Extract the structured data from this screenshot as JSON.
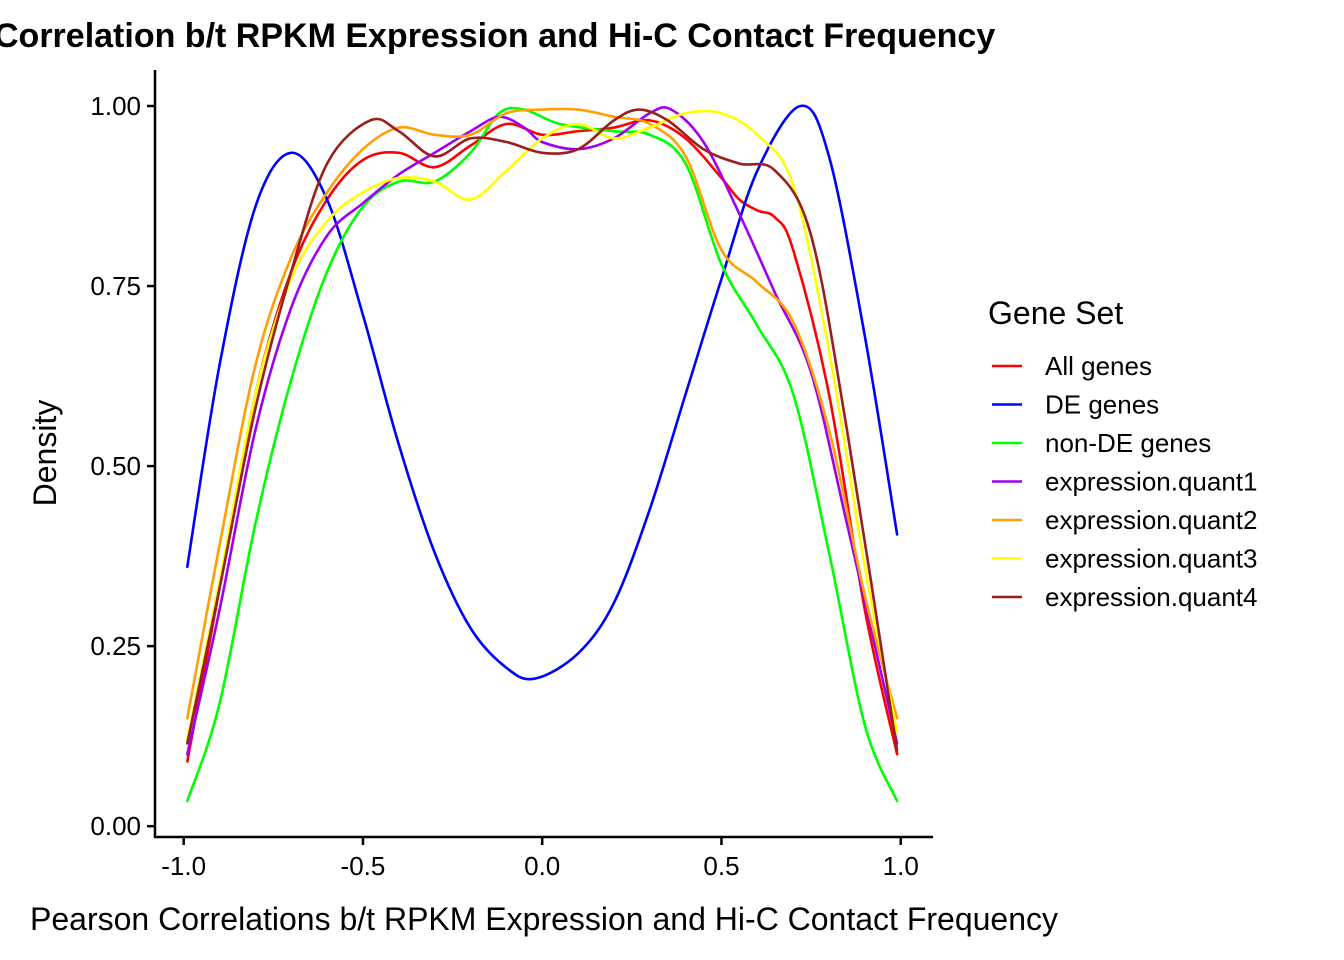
{
  "chart_data": {
    "type": "line",
    "title": "Correlation b/t RPKM Expression and Hi-C Contact Frequency",
    "xlabel": "Pearson Correlations b/t RPKM Expression and Hi-C Contact Frequency",
    "ylabel": "Density",
    "xlim": [
      -1.08,
      1.09
    ],
    "ylim": [
      -0.015,
      1.05
    ],
    "x_ticks": [
      -1.0,
      -0.5,
      0.0,
      0.5,
      1.0
    ],
    "x_tick_labels": [
      "-1.0",
      "-0.5",
      "0.0",
      "0.5",
      "1.0"
    ],
    "y_ticks": [
      0.0,
      0.25,
      0.5,
      0.75,
      1.0
    ],
    "y_tick_labels": [
      "0.00",
      "0.25",
      "0.50",
      "0.75",
      "1.00"
    ],
    "grid": false,
    "legend": {
      "title": "Gene Set",
      "placement": "right"
    },
    "series": [
      {
        "name": "All genes",
        "color": "#ff0000",
        "points": [
          [
            -0.99,
            0.09
          ],
          [
            -0.9,
            0.33
          ],
          [
            -0.8,
            0.6
          ],
          [
            -0.7,
            0.77
          ],
          [
            -0.6,
            0.87
          ],
          [
            -0.5,
            0.925
          ],
          [
            -0.4,
            0.935
          ],
          [
            -0.3,
            0.915
          ],
          [
            -0.2,
            0.945
          ],
          [
            -0.1,
            0.975
          ],
          [
            0.0,
            0.96
          ],
          [
            0.1,
            0.965
          ],
          [
            0.2,
            0.97
          ],
          [
            0.3,
            0.98
          ],
          [
            0.4,
            0.955
          ],
          [
            0.5,
            0.9
          ],
          [
            0.55,
            0.87
          ],
          [
            0.6,
            0.855
          ],
          [
            0.65,
            0.845
          ],
          [
            0.7,
            0.8
          ],
          [
            0.8,
            0.6
          ],
          [
            0.9,
            0.3
          ],
          [
            0.99,
            0.1
          ]
        ]
      },
      {
        "name": "DE genes",
        "color": "#0000ff",
        "points": [
          [
            -0.99,
            0.36
          ],
          [
            -0.9,
            0.64
          ],
          [
            -0.8,
            0.86
          ],
          [
            -0.7,
            0.935
          ],
          [
            -0.6,
            0.87
          ],
          [
            -0.5,
            0.71
          ],
          [
            -0.4,
            0.53
          ],
          [
            -0.3,
            0.38
          ],
          [
            -0.2,
            0.275
          ],
          [
            -0.1,
            0.22
          ],
          [
            -0.02,
            0.205
          ],
          [
            0.1,
            0.24
          ],
          [
            0.2,
            0.31
          ],
          [
            0.3,
            0.44
          ],
          [
            0.4,
            0.6
          ],
          [
            0.5,
            0.76
          ],
          [
            0.6,
            0.91
          ],
          [
            0.72,
            1.0
          ],
          [
            0.8,
            0.93
          ],
          [
            0.9,
            0.68
          ],
          [
            0.99,
            0.405
          ]
        ]
      },
      {
        "name": "non-DE genes",
        "color": "#00ff00",
        "points": [
          [
            -0.99,
            0.035
          ],
          [
            -0.9,
            0.17
          ],
          [
            -0.8,
            0.42
          ],
          [
            -0.7,
            0.62
          ],
          [
            -0.6,
            0.77
          ],
          [
            -0.5,
            0.86
          ],
          [
            -0.4,
            0.895
          ],
          [
            -0.3,
            0.895
          ],
          [
            -0.2,
            0.935
          ],
          [
            -0.12,
            0.99
          ],
          [
            -0.05,
            0.995
          ],
          [
            0.05,
            0.975
          ],
          [
            0.2,
            0.965
          ],
          [
            0.3,
            0.96
          ],
          [
            0.4,
            0.92
          ],
          [
            0.5,
            0.78
          ],
          [
            0.6,
            0.695
          ],
          [
            0.7,
            0.6
          ],
          [
            0.8,
            0.38
          ],
          [
            0.9,
            0.14
          ],
          [
            0.99,
            0.035
          ]
        ]
      },
      {
        "name": "expression.quant1",
        "color": "#a000f0",
        "points": [
          [
            -0.99,
            0.1
          ],
          [
            -0.9,
            0.3
          ],
          [
            -0.8,
            0.55
          ],
          [
            -0.7,
            0.72
          ],
          [
            -0.6,
            0.82
          ],
          [
            -0.5,
            0.865
          ],
          [
            -0.4,
            0.905
          ],
          [
            -0.3,
            0.935
          ],
          [
            -0.2,
            0.965
          ],
          [
            -0.12,
            0.985
          ],
          [
            -0.05,
            0.97
          ],
          [
            0.0,
            0.95
          ],
          [
            0.1,
            0.94
          ],
          [
            0.2,
            0.955
          ],
          [
            0.3,
            0.99
          ],
          [
            0.36,
            0.995
          ],
          [
            0.45,
            0.95
          ],
          [
            0.55,
            0.85
          ],
          [
            0.65,
            0.74
          ],
          [
            0.75,
            0.63
          ],
          [
            0.85,
            0.42
          ],
          [
            0.99,
            0.115
          ]
        ]
      },
      {
        "name": "expression.quant2",
        "color": "#ff9f00",
        "points": [
          [
            -0.99,
            0.15
          ],
          [
            -0.9,
            0.39
          ],
          [
            -0.8,
            0.64
          ],
          [
            -0.7,
            0.79
          ],
          [
            -0.6,
            0.88
          ],
          [
            -0.5,
            0.94
          ],
          [
            -0.4,
            0.97
          ],
          [
            -0.3,
            0.96
          ],
          [
            -0.2,
            0.96
          ],
          [
            -0.1,
            0.99
          ],
          [
            0.0,
            0.995
          ],
          [
            0.1,
            0.995
          ],
          [
            0.2,
            0.985
          ],
          [
            0.3,
            0.975
          ],
          [
            0.4,
            0.93
          ],
          [
            0.5,
            0.8
          ],
          [
            0.6,
            0.755
          ],
          [
            0.7,
            0.7
          ],
          [
            0.8,
            0.55
          ],
          [
            0.9,
            0.32
          ],
          [
            0.99,
            0.15
          ]
        ]
      },
      {
        "name": "expression.quant3",
        "color": "#ffff00",
        "points": [
          [
            -0.99,
            0.12
          ],
          [
            -0.9,
            0.34
          ],
          [
            -0.8,
            0.6
          ],
          [
            -0.7,
            0.76
          ],
          [
            -0.6,
            0.84
          ],
          [
            -0.5,
            0.88
          ],
          [
            -0.4,
            0.9
          ],
          [
            -0.3,
            0.895
          ],
          [
            -0.2,
            0.87
          ],
          [
            -0.1,
            0.91
          ],
          [
            0.0,
            0.955
          ],
          [
            0.1,
            0.975
          ],
          [
            0.2,
            0.955
          ],
          [
            0.3,
            0.97
          ],
          [
            0.4,
            0.99
          ],
          [
            0.5,
            0.99
          ],
          [
            0.6,
            0.96
          ],
          [
            0.7,
            0.89
          ],
          [
            0.8,
            0.66
          ],
          [
            0.9,
            0.36
          ],
          [
            0.99,
            0.13
          ]
        ]
      },
      {
        "name": "expression.quant4",
        "color": "#9a1e1e",
        "points": [
          [
            -0.99,
            0.115
          ],
          [
            -0.9,
            0.33
          ],
          [
            -0.8,
            0.58
          ],
          [
            -0.7,
            0.77
          ],
          [
            -0.6,
            0.92
          ],
          [
            -0.48,
            0.98
          ],
          [
            -0.4,
            0.965
          ],
          [
            -0.3,
            0.93
          ],
          [
            -0.2,
            0.955
          ],
          [
            -0.1,
            0.95
          ],
          [
            0.0,
            0.935
          ],
          [
            0.1,
            0.94
          ],
          [
            0.2,
            0.98
          ],
          [
            0.27,
            0.995
          ],
          [
            0.35,
            0.98
          ],
          [
            0.45,
            0.94
          ],
          [
            0.55,
            0.92
          ],
          [
            0.65,
            0.91
          ],
          [
            0.75,
            0.82
          ],
          [
            0.85,
            0.55
          ],
          [
            0.99,
            0.105
          ]
        ]
      }
    ]
  }
}
